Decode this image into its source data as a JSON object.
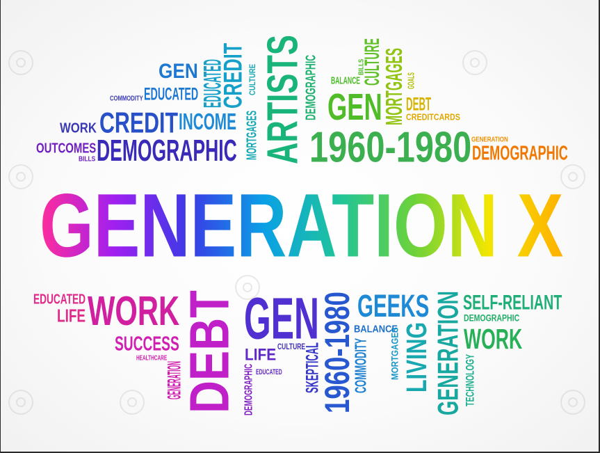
{
  "colors": {
    "title_gradient": [
      "#ff2d9b",
      "#a020f0",
      "#3a3ae6",
      "#0aa0e6",
      "#1fc49a",
      "#6cd23a",
      "#f2e600",
      "#ffb000"
    ]
  },
  "words": [
    {
      "text": "GEN",
      "color": "#1e78d2"
    },
    {
      "text": "EDUCATED",
      "color": "#1e78d2"
    },
    {
      "text": "COMMODITY",
      "color": "#3a3ab4"
    },
    {
      "text": "WORK",
      "color": "#3a3ab4"
    },
    {
      "text": "CREDIT",
      "color": "#2850c8"
    },
    {
      "text": "INCOME",
      "color": "#1e8ad6"
    },
    {
      "text": "OUTCOMES",
      "color": "#7020c0"
    },
    {
      "text": "BILLS",
      "color": "#7020c0"
    },
    {
      "text": "DEMOGRAPHIC",
      "color": "#3a2ab8"
    },
    {
      "text": "EDUCATED",
      "color": "#1aa0c8"
    },
    {
      "text": "CREDIT",
      "color": "#14a0c8"
    },
    {
      "text": "MORTGAGES",
      "color": "#14a8b4"
    },
    {
      "text": "CULTURE",
      "color": "#14a8b4"
    },
    {
      "text": "ARTISTS",
      "color": "#18b47a"
    },
    {
      "text": "DEMOGRAPHIC",
      "color": "#20b070"
    },
    {
      "text": "BALANCE",
      "color": "#4cbc28"
    },
    {
      "text": "BILLS",
      "color": "#4cbc28"
    },
    {
      "text": "CULTURE",
      "color": "#60c028"
    },
    {
      "text": "MORTGAGES",
      "color": "#90c410"
    },
    {
      "text": "GOALS",
      "color": "#b0c000"
    },
    {
      "text": "GEN",
      "color": "#50bc28"
    },
    {
      "text": "DEBT",
      "color": "#d8b400"
    },
    {
      "text": "CREDITCARDS",
      "color": "#e0a800"
    },
    {
      "text": "1960-1980",
      "color": "#3cb050"
    },
    {
      "text": "GENERATION",
      "color": "#f09000"
    },
    {
      "text": "DEMOGRAPHIC",
      "color": "#f07800"
    },
    {
      "text": "GENERATION X",
      "color": "gradient"
    },
    {
      "text": "EDUCATED",
      "color": "#e02a8a"
    },
    {
      "text": "LIFE",
      "color": "#e02a8a"
    },
    {
      "text": "WORK",
      "color": "#d020a0"
    },
    {
      "text": "SUCCESS",
      "color": "#d020b0"
    },
    {
      "text": "HEALTHCARE",
      "color": "#d020b0"
    },
    {
      "text": "GENERATION",
      "color": "#d020b0"
    },
    {
      "text": "DEBT",
      "color": "#c020c8"
    },
    {
      "text": "GEN",
      "color": "#5030d0"
    },
    {
      "text": "LIFE",
      "color": "#6028c8"
    },
    {
      "text": "CULTURE",
      "color": "#4030c0"
    },
    {
      "text": "EDUCATED",
      "color": "#6028c8"
    },
    {
      "text": "DEMOGRAPHIC",
      "color": "#8020c0"
    },
    {
      "text": "SKEPTICAL",
      "color": "#3838c8"
    },
    {
      "text": "1960-1980",
      "color": "#2858d0"
    },
    {
      "text": "GEEKS",
      "color": "#1e8ad6"
    },
    {
      "text": "BALANCE",
      "color": "#2070c8"
    },
    {
      "text": "COMMODITY",
      "color": "#1e80d0"
    },
    {
      "text": "MORTGAGES",
      "color": "#1a98c8"
    },
    {
      "text": "LIVING",
      "color": "#18a8b0"
    },
    {
      "text": "GENERATION",
      "color": "#18a8a0"
    },
    {
      "text": "TECHNOLOGY",
      "color": "#20b090"
    },
    {
      "text": "SELF-RELIANT",
      "color": "#20ae78"
    },
    {
      "text": "DEMOGRAPHIC",
      "color": "#20ae68"
    },
    {
      "text": "WORK",
      "color": "#28b058"
    }
  ]
}
